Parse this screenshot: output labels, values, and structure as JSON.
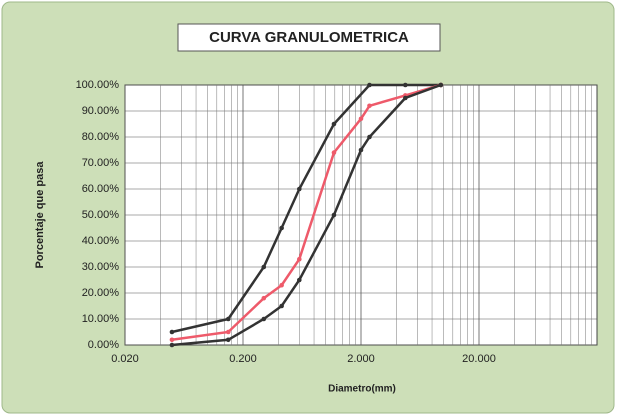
{
  "chart_data": {
    "type": "line",
    "title": "CURVA GRANULOMETRICA",
    "x_label": "Diametro(mm)",
    "y_label": "Porcentaje que pasa",
    "log_x": true,
    "grid": true,
    "xlim": [
      0.02,
      200
    ],
    "xticks": [
      {
        "value": 0.02,
        "label": "0.020"
      },
      {
        "value": 0.2,
        "label": "0.200"
      },
      {
        "value": 2,
        "label": "2.000"
      },
      {
        "value": 20,
        "label": "20.000"
      }
    ],
    "ylim": [
      0,
      100
    ],
    "yticks": [
      {
        "value": 0,
        "label": "0.00%"
      },
      {
        "value": 10,
        "label": "10.00%"
      },
      {
        "value": 20,
        "label": "20.00%"
      },
      {
        "value": 30,
        "label": "30.00%"
      },
      {
        "value": 40,
        "label": "40.00%"
      },
      {
        "value": 50,
        "label": "50.00%"
      },
      {
        "value": 60,
        "label": "60.00%"
      },
      {
        "value": 70,
        "label": "70.00%"
      },
      {
        "value": 80,
        "label": "80.00%"
      },
      {
        "value": 90,
        "label": "90.00%"
      },
      {
        "value": 100,
        "label": "100.00%"
      }
    ],
    "series": [
      {
        "color": "#333333",
        "x": [
          0.05,
          0.15,
          0.3,
          0.425,
          0.6,
          1.18,
          2.36,
          4.75,
          9.5
        ],
        "values": [
          5,
          10,
          30,
          45,
          60,
          85,
          100,
          100,
          100
        ]
      },
      {
        "color": "#ee5a6a",
        "x": [
          0.05,
          0.15,
          0.3,
          0.425,
          0.6,
          1.18,
          2.0,
          2.36,
          4.75,
          9.5
        ],
        "values": [
          2,
          5,
          18,
          23,
          33,
          74,
          87,
          92,
          96,
          100
        ]
      },
      {
        "color": "#333333",
        "x": [
          0.05,
          0.15,
          0.3,
          0.425,
          0.6,
          1.18,
          2.0,
          2.36,
          4.75,
          9.5
        ],
        "values": [
          0,
          2,
          10,
          15,
          25,
          50,
          75,
          80,
          95,
          100
        ]
      }
    ]
  }
}
